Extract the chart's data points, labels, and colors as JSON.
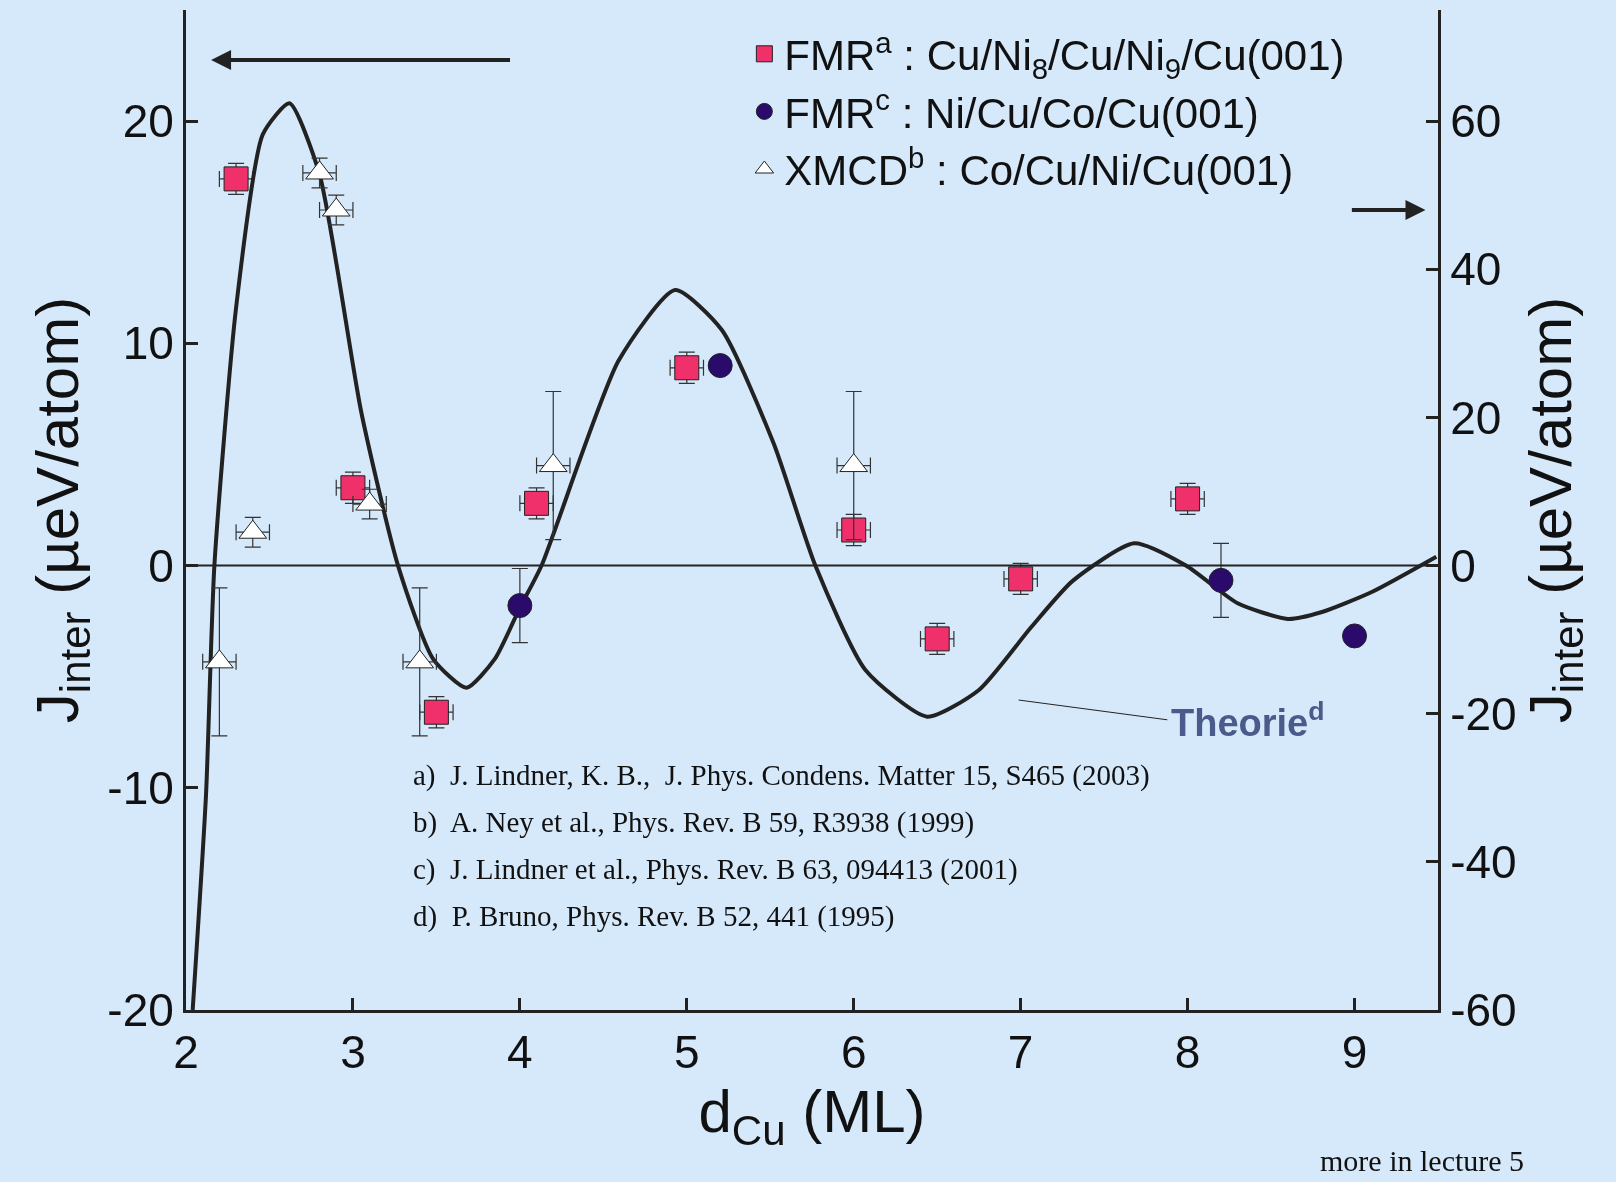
{
  "chart_data": {
    "type": "scatter",
    "xlabel": "d$_{Cu}$ (ML)",
    "ylabel": "J$_{inter}$ (µeV/atom)",
    "y2label": "J$_{inter}$ (µeV/atom)",
    "xlim": [
      2,
      9.5
    ],
    "xticks": [
      2,
      3,
      4,
      5,
      6,
      7,
      8,
      9
    ],
    "ylim": [
      -20,
      25
    ],
    "yticks": [
      -20,
      -10,
      0,
      10,
      20
    ],
    "y2lim": [
      -60,
      75
    ],
    "y2ticks": [
      -60,
      -40,
      -20,
      0,
      20,
      40,
      60
    ],
    "grid": false,
    "legend": "top right",
    "series": [
      {
        "name": "FMR$^{a}$ : Cu/Ni$_{8}$/Cu/Ni$_{9}$/Cu(001)",
        "color": "#f0306a",
        "marker": "square",
        "x": [
          2.3,
          3.0,
          3.5,
          4.1,
          5.0,
          6.0,
          6.5,
          7.0,
          8.0
        ],
        "values": [
          17.4,
          3.5,
          -6.6,
          2.8,
          8.9,
          1.6,
          -3.3,
          -0.6,
          3.0
        ],
        "errors": [
          0.7,
          0.7,
          0.7,
          0.7,
          0.7,
          0.7,
          0.7,
          0.7,
          0.7
        ],
        "xerrors": [
          0.1,
          0.1,
          0.1,
          0.1,
          0.1,
          0.1,
          0.1,
          0.1,
          0.1
        ]
      },
      {
        "name": "FMR$^{c}$ : Ni/Cu/Co/Cu(001)",
        "color": "#2a0a6a",
        "marker": "circle",
        "axis": "y2",
        "x": [
          4.0,
          5.2,
          8.2,
          9.0
        ],
        "values": [
          -5.4,
          27,
          -2,
          -9.5
        ],
        "errors": [
          5,
          null,
          5,
          null
        ]
      },
      {
        "name": "XMCD$^{b}$ : Co/Cu/Ni/Cu(001)",
        "color": "#ffffff",
        "marker": "triangle",
        "axis": "y2",
        "x": [
          2.2,
          2.4,
          2.8,
          2.9,
          3.1,
          3.4,
          4.2,
          6.0
        ],
        "values": [
          -13,
          4.5,
          53,
          48,
          8.3,
          -13,
          13.5,
          13.5
        ],
        "errors": [
          10,
          2,
          2,
          2,
          2,
          10,
          10,
          10
        ],
        "xerrors": [
          0.1,
          0.1,
          0.1,
          0.1,
          0.1,
          0.1,
          0.1,
          0.1
        ]
      },
      {
        "type": "line",
        "color": "#222222",
        "marker": "none",
        "x": [
          2.04,
          2.12,
          2.17,
          2.3,
          2.46,
          2.62,
          2.8,
          3.05,
          3.27,
          3.48,
          3.68,
          3.85,
          4.0,
          4.13,
          4.59,
          4.93,
          5.21,
          5.52,
          5.77,
          6.07,
          6.44,
          6.75,
          7.06,
          7.31,
          7.68,
          7.99,
          8.3,
          8.6,
          8.8,
          9.1,
          9.49
        ],
        "values": [
          -20,
          -10.3,
          0,
          11.6,
          19.4,
          20.8,
          17.6,
          6.9,
          0,
          -4.2,
          -5.5,
          -4.2,
          -1.9,
          0,
          9.2,
          12.4,
          10.6,
          5.5,
          0,
          -4.7,
          -6.8,
          -5.6,
          -2.8,
          -0.7,
          1.0,
          0,
          -1.7,
          -2.4,
          -2.1,
          -1.2,
          0.4
        ]
      }
    ],
    "ref_lines": [
      {
        "axis": "y",
        "value": 0,
        "color": "#222222"
      }
    ],
    "annotations": [
      "Theorie$^{d}$",
      "a)  J. Lindner, K. B.,  J. Phys. Condens. Matter 15, S465 (2003)",
      "b)  A. Ney et al., Phys. Rev. B 59, R3938 (1999)",
      "c)  J. Lindner et al., Phys. Rev. B 63, 094413 (2001)",
      "d)  P. Bruno, Phys. Rev. B 52, 441 (1995)",
      "more in lecture 5"
    ]
  }
}
